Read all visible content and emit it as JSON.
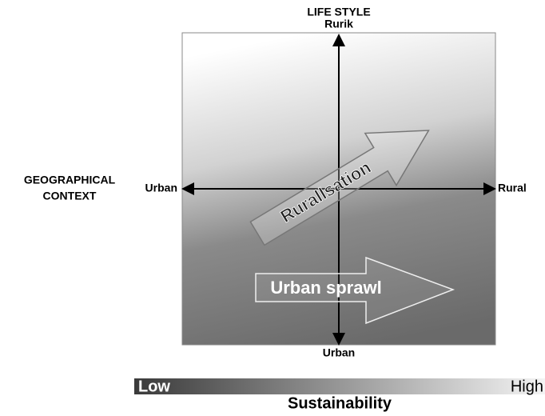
{
  "top_axis": {
    "title": "LIFE STYLE",
    "label": "Rurik"
  },
  "left_axis": {
    "title_lines": [
      "GEOGRAPHICAL",
      "CONTEXT"
    ],
    "label": "Urban"
  },
  "right_axis": {
    "label": "Rural"
  },
  "bottom_axis": {
    "label": "Urban"
  },
  "arrows": [
    {
      "label": "Rurallsation"
    },
    {
      "label": "Urban sprawl"
    }
  ],
  "scale": {
    "low": "Low",
    "high": "High",
    "title": "Sustainability"
  }
}
